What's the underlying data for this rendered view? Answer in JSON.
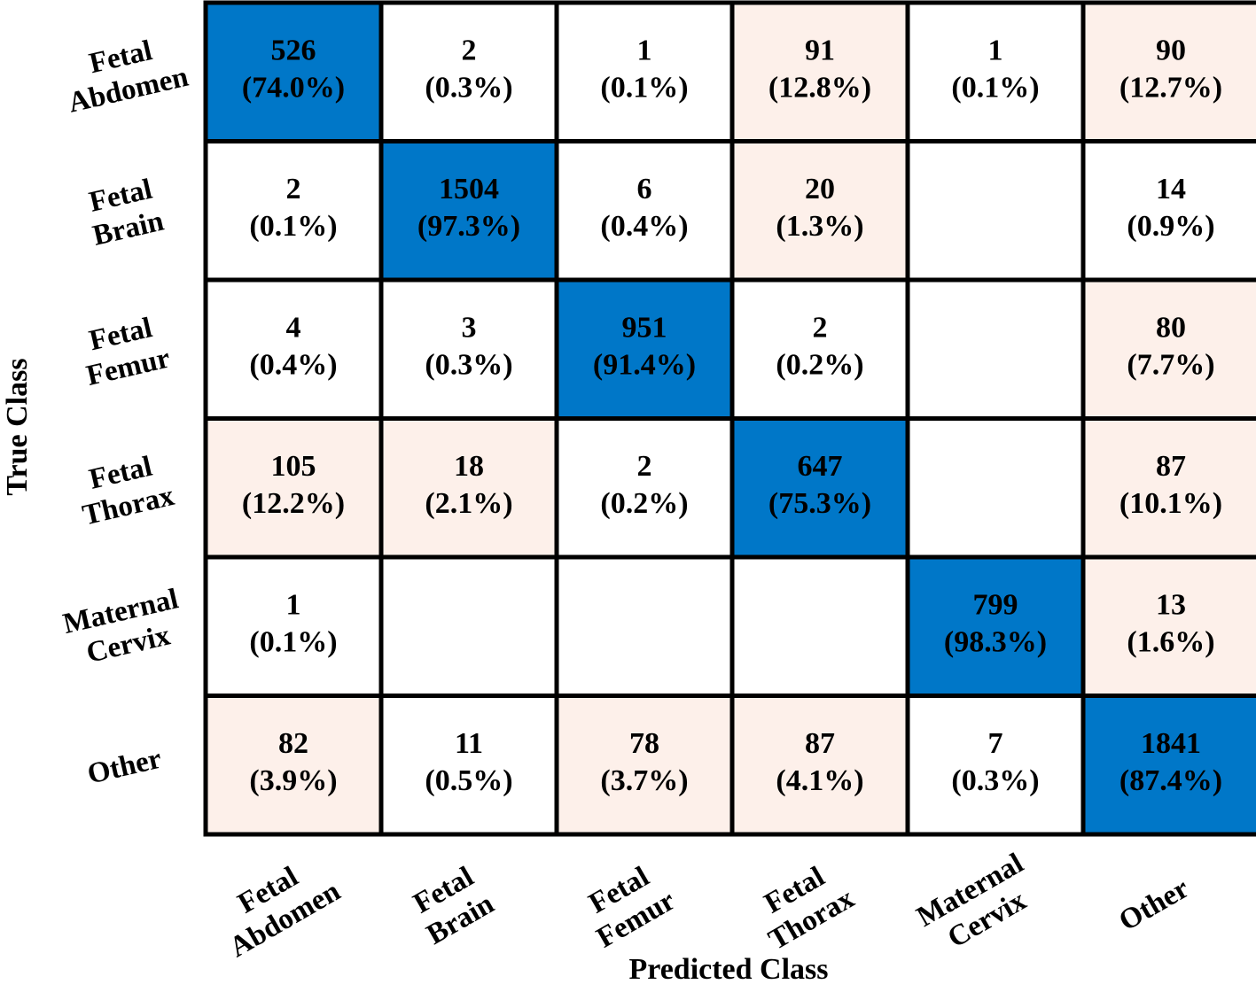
{
  "chart_data": {
    "type": "heatmap",
    "xlabel": "Predicted Class",
    "ylabel": "True Class",
    "row_labels": [
      [
        "Fetal",
        "Abdomen"
      ],
      [
        "Fetal",
        "Brain"
      ],
      [
        "Fetal",
        "Femur"
      ],
      [
        "Fetal",
        "Thorax"
      ],
      [
        "Maternal",
        "Cervix"
      ],
      [
        "Other"
      ]
    ],
    "col_labels": [
      [
        "Fetal",
        "Abdomen"
      ],
      [
        "Fetal",
        "Brain"
      ],
      [
        "Fetal",
        "Femur"
      ],
      [
        "Fetal",
        "Thorax"
      ],
      [
        "Maternal",
        "Cervix"
      ],
      [
        "Other"
      ]
    ],
    "counts": [
      [
        "526",
        "2",
        "1",
        "91",
        "1",
        "90"
      ],
      [
        "2",
        "1504",
        "6",
        "20",
        "",
        "14"
      ],
      [
        "4",
        "3",
        "951",
        "2",
        "",
        "80"
      ],
      [
        "105",
        "18",
        "2",
        "647",
        "",
        "87"
      ],
      [
        "1",
        "",
        "",
        "",
        "799",
        "13"
      ],
      [
        "82",
        "11",
        "78",
        "87",
        "7",
        "1841"
      ]
    ],
    "percents": [
      [
        "(74.0%)",
        "(0.3%)",
        "(0.1%)",
        "(12.8%)",
        "(0.1%)",
        "(12.7%)"
      ],
      [
        "(0.1%)",
        "(97.3%)",
        "(0.4%)",
        "(1.3%)",
        "",
        "(0.9%)"
      ],
      [
        "(0.4%)",
        "(0.3%)",
        "(91.4%)",
        "(0.2%)",
        "",
        "(7.7%)"
      ],
      [
        "(12.2%)",
        "(2.1%)",
        "(0.2%)",
        "(75.3%)",
        "",
        "(10.1%)"
      ],
      [
        "(0.1%)",
        "",
        "",
        "",
        "(98.3%)",
        "(1.6%)"
      ],
      [
        "(3.9%)",
        "(0.5%)",
        "(3.7%)",
        "(4.1%)",
        "(0.3%)",
        "(87.4%)"
      ]
    ],
    "colors": {
      "diagonal": "#0077c8",
      "off_diagonal_highlight": "#fdf0ea",
      "default": "#ffffff",
      "border": "#000000"
    }
  }
}
